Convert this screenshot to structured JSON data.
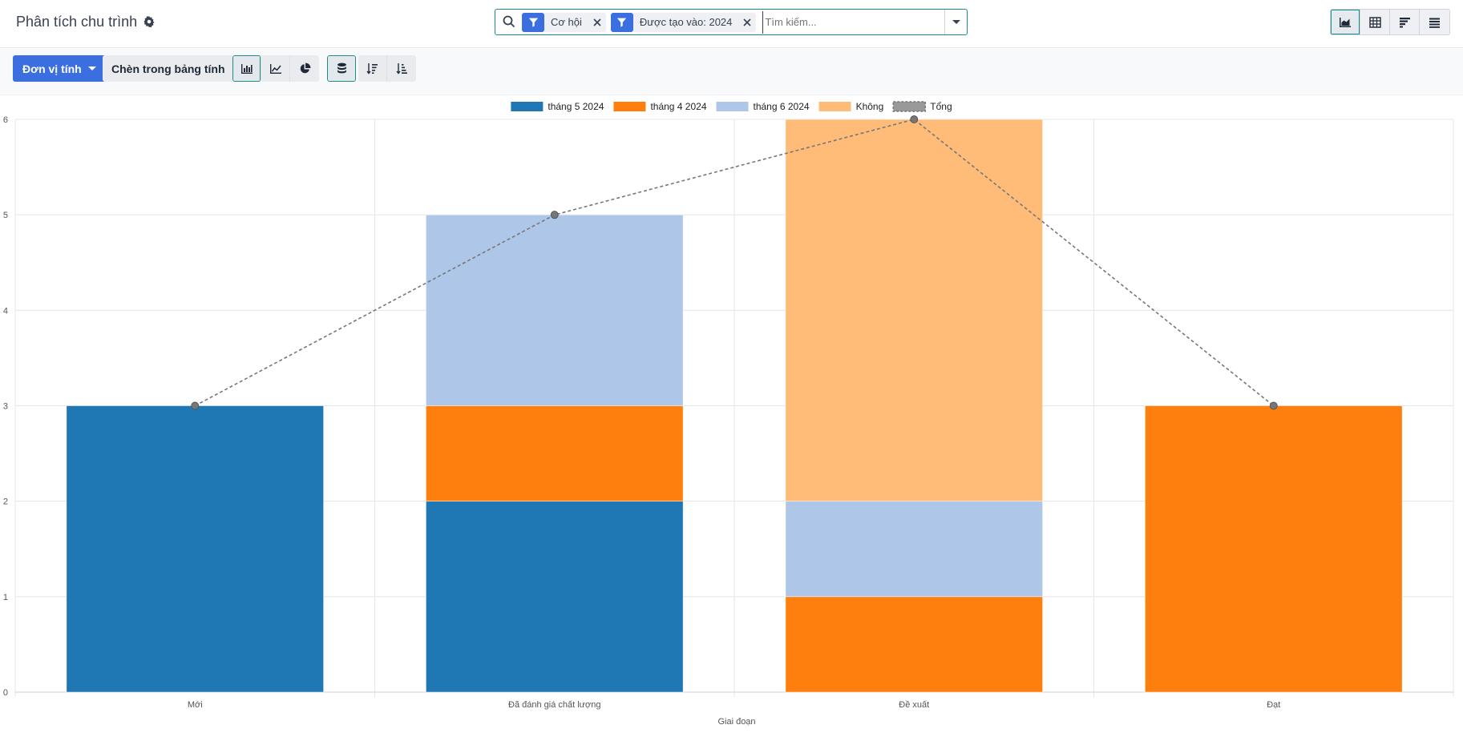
{
  "header": {
    "title": "Phân tích chu trình",
    "search": {
      "facets": [
        {
          "label": "Cơ hội"
        },
        {
          "label": "Được tạo vào: 2024"
        }
      ],
      "placeholder": "Tìm kiếm..."
    },
    "views": [
      "graph-view-icon",
      "pivot-view-icon",
      "cohort-view-icon",
      "list-view-icon"
    ]
  },
  "toolbar": {
    "measure_label": "Đơn vị tính",
    "spreadsheet_label": "Chèn trong bảng tính",
    "chart_types": [
      "bar-chart-icon",
      "line-chart-icon",
      "pie-chart-icon"
    ],
    "stacked_icon": "stack-icon",
    "sort": [
      "sort-descending-icon",
      "sort-ascending-icon"
    ]
  },
  "chart_data": {
    "type": "bar",
    "stacked": true,
    "categories": [
      "Mới",
      "Đã đánh giá chất lượng",
      "Đề xuất",
      "Đạt"
    ],
    "series": [
      {
        "name": "tháng 5 2024",
        "values": [
          3,
          2,
          0,
          0
        ],
        "color": "#1f77b4"
      },
      {
        "name": "tháng 4 2024",
        "values": [
          0,
          1,
          1,
          3
        ],
        "color": "#ff7f0e"
      },
      {
        "name": "tháng 6 2024",
        "values": [
          0,
          2,
          1,
          0
        ],
        "color": "#aec7e8"
      },
      {
        "name": "Không",
        "values": [
          0,
          0,
          4,
          0
        ],
        "color": "#ffbb78"
      }
    ],
    "total": {
      "name": "Tổng",
      "values": [
        3,
        5,
        6,
        3
      ],
      "color": "#888888"
    },
    "xlabel": "Giai đoạn",
    "ylabel": "",
    "ylim": [
      0,
      6
    ],
    "yticks": [
      0,
      1,
      2,
      3,
      4,
      5,
      6
    ],
    "grid": true,
    "legend": "top-center"
  }
}
